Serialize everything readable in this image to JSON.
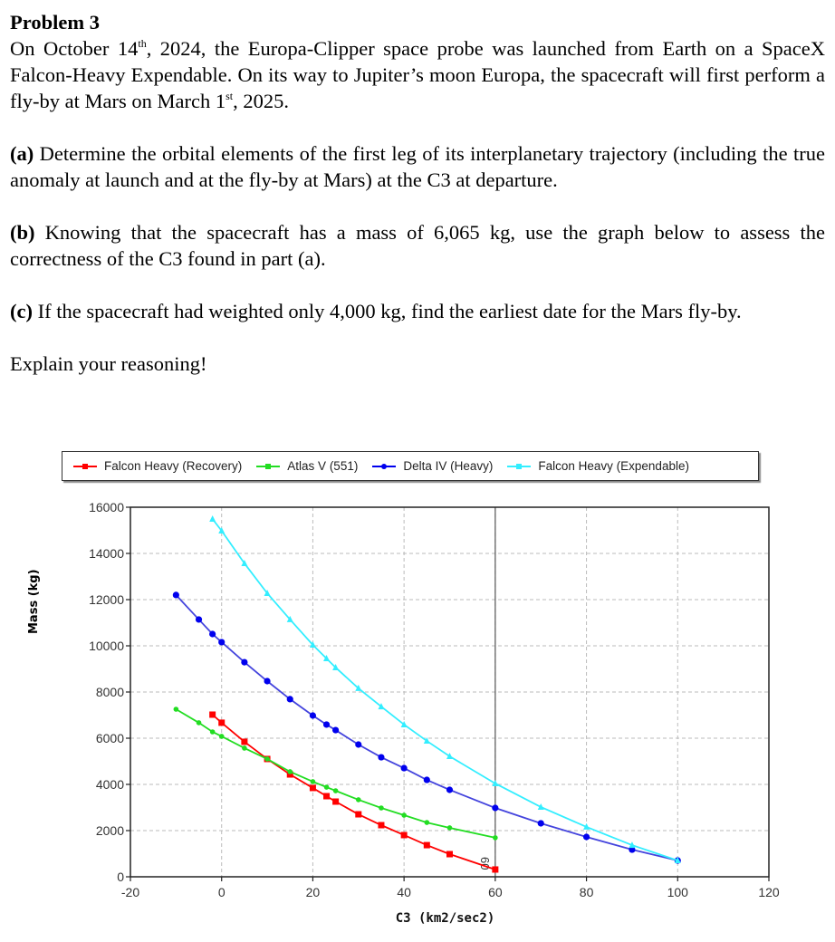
{
  "document": {
    "title": "Problem 3",
    "intro": {
      "part1": "On October 14",
      "sup1": "th",
      "part2": ", 2024, the Europa-Clipper space probe was launched from Earth on a SpaceX Falcon-Heavy Expendable. On its way to Jupiter’s moon Europa, the spacecraft will first perform a fly-by at Mars on March 1",
      "sup2": "st",
      "part3": ", 2025."
    },
    "questions": [
      {
        "label": "(a)",
        "text": " Determine the orbital elements of the first leg of its interplanetary trajectory (including the true anomaly at launch and at the fly-by at Mars) at the C3 at departure."
      },
      {
        "label": "(b)",
        "text": " Knowing that the spacecraft has a mass of 6,065 kg, use the graph below to assess the correctness of the C3 found in part (a)."
      },
      {
        "label": "(c)",
        "text": " If the spacecraft had weighted only 4,000 kg, find the earliest date for the Mars fly-by."
      }
    ],
    "closing": "Explain your reasoning!"
  },
  "chart_data": {
    "type": "line",
    "title": "",
    "xlabel": "C3 (km2/sec2)",
    "ylabel": "Mass (kg)",
    "xlim": [
      -20,
      120
    ],
    "ylim": [
      0,
      16000
    ],
    "xticks": [
      -20,
      0,
      20,
      40,
      60,
      80,
      100,
      120
    ],
    "yticks": [
      0,
      2000,
      4000,
      6000,
      8000,
      10000,
      12000,
      14000,
      16000
    ],
    "grid": true,
    "legend_position": "top",
    "vertical_marker": {
      "x": 60,
      "label": "60"
    },
    "series": [
      {
        "name": "Falcon Heavy (Recovery)",
        "color": "#ff0000",
        "marker": "square",
        "x": [
          -2,
          0,
          5,
          10,
          15,
          20,
          23,
          25,
          30,
          35,
          40,
          45,
          50,
          60
        ],
        "y": [
          7020,
          6670,
          5845,
          5100,
          4430,
          3845,
          3490,
          3255,
          2705,
          2235,
          1805,
          1370,
          980,
          315
        ]
      },
      {
        "name": "Atlas V (551)",
        "color": "#22dd22",
        "marker": "diamond",
        "x": [
          -10,
          -5,
          -2,
          0,
          5,
          10,
          15,
          20,
          23,
          25,
          30,
          35,
          40,
          45,
          50,
          60
        ],
        "y": [
          7255,
          6670,
          6275,
          6080,
          5570,
          5100,
          4550,
          4120,
          3880,
          3725,
          3335,
          2980,
          2665,
          2350,
          2120,
          1690
        ]
      },
      {
        "name": "Delta IV (Heavy)",
        "color": "#0000ee",
        "marker": "circle",
        "x": [
          -10,
          -5,
          -2,
          0,
          5,
          10,
          15,
          20,
          23,
          25,
          30,
          35,
          40,
          45,
          50,
          60,
          70,
          80,
          90,
          100
        ],
        "y": [
          12200,
          11140,
          10510,
          10160,
          9290,
          8470,
          7690,
          6980,
          6590,
          6350,
          5725,
          5175,
          4705,
          4195,
          3765,
          2980,
          2315,
          1725,
          1175,
          705
        ]
      },
      {
        "name": "Falcon Heavy (Expendable)",
        "color": "#33eeff",
        "marker": "triangle",
        "x": [
          -2,
          0,
          5,
          10,
          15,
          20,
          23,
          25,
          30,
          35,
          40,
          45,
          50,
          60,
          70,
          80,
          90,
          100
        ],
        "y": [
          15490,
          14980,
          13570,
          12275,
          11140,
          10040,
          9450,
          9060,
          8160,
          7370,
          6590,
          5880,
          5215,
          4040,
          3020,
          2160,
          1370,
          705
        ]
      }
    ]
  }
}
